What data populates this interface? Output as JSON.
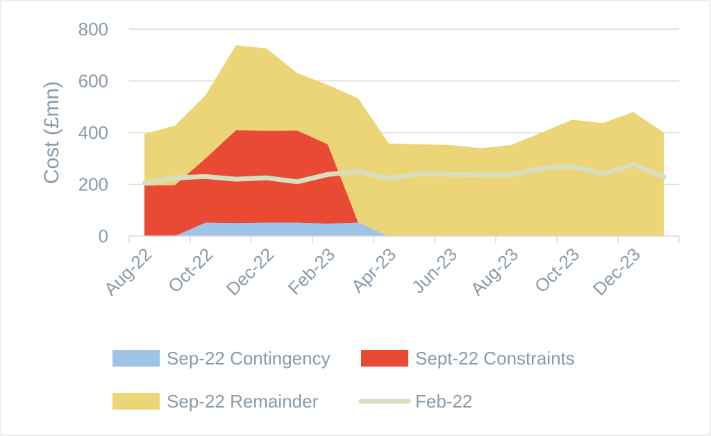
{
  "chart_data": {
    "type": "area",
    "title": "",
    "xlabel": "",
    "ylabel": "Cost (£mn)",
    "ylim": [
      0,
      800
    ],
    "yticks": [
      "0",
      "200",
      "400",
      "600",
      "800"
    ],
    "grid": true,
    "legend_position": "bottom",
    "x": [
      "Aug-22",
      "Sep-22",
      "Oct-22",
      "Nov-22",
      "Dec-22",
      "Jan-23",
      "Feb-23",
      "Mar-23",
      "Apr-23",
      "May-23",
      "Jun-23",
      "Jul-23",
      "Aug-23",
      "Sep-23",
      "Oct-23",
      "Nov-23",
      "Dec-23",
      "Jan-24"
    ],
    "x_tick_labels": [
      "Aug-22",
      "Oct-22",
      "Dec-22",
      "Feb-23",
      "Apr-23",
      "Jun-23",
      "Aug-23",
      "Oct-23",
      "Dec-23"
    ],
    "stacked": true,
    "series": [
      {
        "name": "Sep-22 Contingency",
        "kind": "area",
        "color": "#9dc3e6",
        "values": [
          0,
          0,
          52,
          50,
          52,
          52,
          48,
          52,
          0,
          0,
          0,
          0,
          0,
          0,
          0,
          0,
          0,
          0
        ]
      },
      {
        "name": "Sept-22 Constraints",
        "kind": "area",
        "color": "#e84a33",
        "values": [
          195,
          197,
          248,
          360,
          355,
          356,
          307,
          0,
          0,
          0,
          0,
          0,
          0,
          0,
          0,
          0,
          0,
          0
        ]
      },
      {
        "name": "Sep-22 Remainder",
        "kind": "area",
        "color": "#ecd577",
        "values": [
          200,
          230,
          245,
          328,
          318,
          222,
          230,
          480,
          358,
          355,
          352,
          340,
          352,
          400,
          450,
          437,
          480,
          400
        ]
      },
      {
        "name": "Feb-22",
        "kind": "line",
        "color": "#d8dec0",
        "values": [
          205,
          225,
          230,
          220,
          225,
          210,
          238,
          250,
          222,
          242,
          238,
          237,
          237,
          262,
          270,
          240,
          278,
          228
        ]
      }
    ]
  }
}
